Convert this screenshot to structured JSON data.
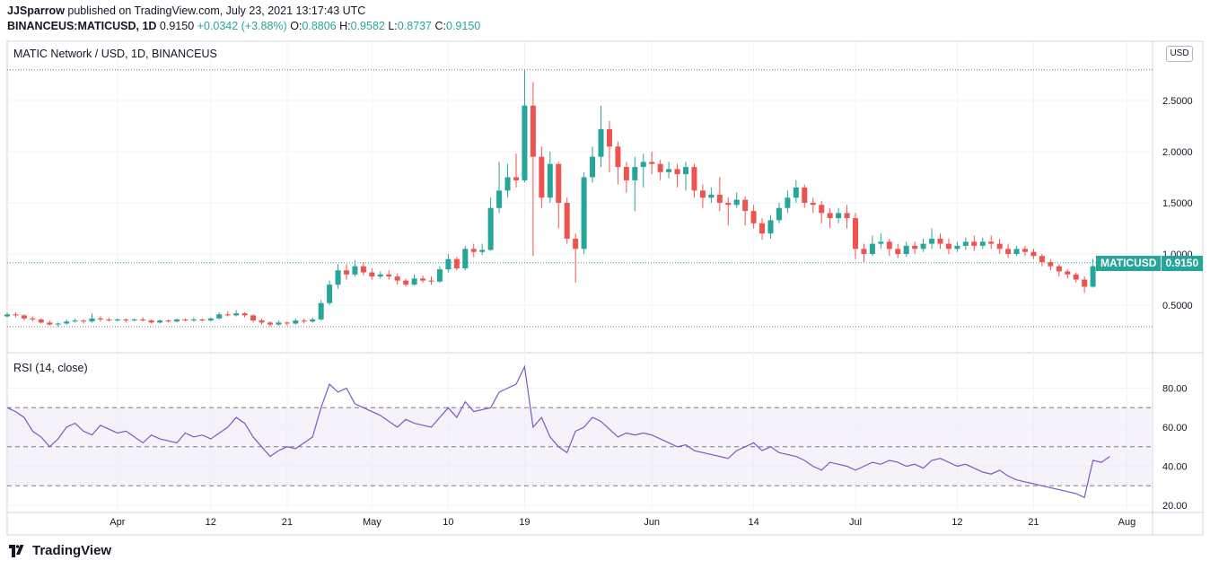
{
  "header": {
    "publisher": "JJSparrow",
    "published_text": "published on TradingView.com, July 23, 2021 13:17:43 UTC",
    "symbol_line": "BINANCEUS:MATICUSD, 1D",
    "last": "0.9150",
    "change": "+0.0342 (+3.88%)",
    "o_label": "O:",
    "o": "0.8806",
    "h_label": "H:",
    "h": "0.9582",
    "l_label": "L:",
    "l": "0.8737",
    "c_label": "C:",
    "c": "0.9150"
  },
  "main_pane": {
    "legend": "MATIC Network / USD, 1D, BINANCEUS",
    "currency_button": "USD",
    "price_tag_symbol": "MATICUSD",
    "price_tag_value": "0.9150"
  },
  "rsi_pane": {
    "legend": "RSI (14, close)"
  },
  "footer": {
    "brand": "TradingView"
  },
  "colors": {
    "up": "#26a69a",
    "down": "#ef5350",
    "rsi_line": "#7e57c2",
    "rsi_band": "#ede7f6"
  },
  "chart_data": [
    {
      "type": "candlestick",
      "title": "MATIC Network / USD, 1D, BINANCEUS",
      "ylim": [
        0.2,
        2.9
      ],
      "yticks": [
        "0.5000",
        "1.0000",
        "1.5000",
        "2.0000",
        "2.5000"
      ],
      "yticks_values": [
        0.5,
        1.0,
        1.5,
        2.0,
        2.5
      ],
      "xticks": [
        "Apr",
        "12",
        "21",
        "May",
        "10",
        "19",
        "Jun",
        "14",
        "Jul",
        "12",
        "21",
        "Aug"
      ],
      "xticks_day": [
        13,
        24,
        33,
        43,
        52,
        61,
        76,
        88,
        100,
        112,
        121,
        132
      ],
      "last_price": 0.915,
      "candles": [
        [
          0,
          0.39,
          0.41,
          0.43,
          0.38
        ],
        [
          1,
          0.41,
          0.4,
          0.43,
          0.38
        ],
        [
          2,
          0.4,
          0.37,
          0.41,
          0.35
        ],
        [
          3,
          0.37,
          0.36,
          0.39,
          0.34
        ],
        [
          4,
          0.36,
          0.33,
          0.37,
          0.32
        ],
        [
          5,
          0.33,
          0.31,
          0.35,
          0.3
        ],
        [
          6,
          0.31,
          0.32,
          0.33,
          0.29
        ],
        [
          7,
          0.32,
          0.34,
          0.36,
          0.31
        ],
        [
          8,
          0.34,
          0.35,
          0.37,
          0.33
        ],
        [
          9,
          0.35,
          0.34,
          0.36,
          0.32
        ],
        [
          10,
          0.34,
          0.37,
          0.42,
          0.33
        ],
        [
          11,
          0.37,
          0.36,
          0.39,
          0.34
        ],
        [
          12,
          0.36,
          0.35,
          0.38,
          0.34
        ],
        [
          13,
          0.35,
          0.36,
          0.37,
          0.34
        ],
        [
          14,
          0.36,
          0.35,
          0.37,
          0.33
        ],
        [
          15,
          0.35,
          0.36,
          0.37,
          0.34
        ],
        [
          16,
          0.36,
          0.35,
          0.38,
          0.34
        ],
        [
          17,
          0.35,
          0.33,
          0.36,
          0.32
        ],
        [
          18,
          0.33,
          0.35,
          0.36,
          0.32
        ],
        [
          19,
          0.35,
          0.34,
          0.36,
          0.33
        ],
        [
          20,
          0.34,
          0.36,
          0.37,
          0.33
        ],
        [
          21,
          0.36,
          0.35,
          0.37,
          0.34
        ],
        [
          22,
          0.35,
          0.36,
          0.38,
          0.34
        ],
        [
          23,
          0.36,
          0.35,
          0.37,
          0.34
        ],
        [
          24,
          0.35,
          0.37,
          0.38,
          0.34
        ],
        [
          25,
          0.37,
          0.41,
          0.43,
          0.36
        ],
        [
          26,
          0.41,
          0.4,
          0.44,
          0.39
        ],
        [
          27,
          0.4,
          0.42,
          0.45,
          0.39
        ],
        [
          28,
          0.42,
          0.4,
          0.43,
          0.38
        ],
        [
          29,
          0.4,
          0.35,
          0.41,
          0.33
        ],
        [
          30,
          0.35,
          0.33,
          0.37,
          0.31
        ],
        [
          31,
          0.33,
          0.31,
          0.34,
          0.29
        ],
        [
          32,
          0.31,
          0.33,
          0.35,
          0.3
        ],
        [
          33,
          0.33,
          0.32,
          0.34,
          0.3
        ],
        [
          34,
          0.32,
          0.35,
          0.37,
          0.31
        ],
        [
          35,
          0.35,
          0.34,
          0.37,
          0.32
        ],
        [
          36,
          0.34,
          0.36,
          0.38,
          0.33
        ],
        [
          37,
          0.36,
          0.52,
          0.55,
          0.35
        ],
        [
          38,
          0.52,
          0.7,
          0.74,
          0.5
        ],
        [
          39,
          0.7,
          0.84,
          0.9,
          0.66
        ],
        [
          40,
          0.84,
          0.8,
          0.9,
          0.75
        ],
        [
          41,
          0.8,
          0.88,
          0.94,
          0.78
        ],
        [
          42,
          0.88,
          0.82,
          0.92,
          0.79
        ],
        [
          43,
          0.82,
          0.78,
          0.86,
          0.75
        ],
        [
          44,
          0.78,
          0.8,
          0.83,
          0.76
        ],
        [
          45,
          0.8,
          0.78,
          0.84,
          0.75
        ],
        [
          46,
          0.78,
          0.74,
          0.81,
          0.7
        ],
        [
          47,
          0.74,
          0.7,
          0.76,
          0.68
        ],
        [
          48,
          0.7,
          0.76,
          0.8,
          0.69
        ],
        [
          49,
          0.76,
          0.74,
          0.79,
          0.72
        ],
        [
          50,
          0.74,
          0.73,
          0.78,
          0.7
        ],
        [
          51,
          0.73,
          0.85,
          0.88,
          0.72
        ],
        [
          52,
          0.85,
          0.95,
          1.0,
          0.82
        ],
        [
          53,
          0.95,
          0.86,
          0.97,
          0.84
        ],
        [
          54,
          0.86,
          1.05,
          1.08,
          0.84
        ],
        [
          55,
          1.05,
          1.02,
          1.1,
          0.97
        ],
        [
          56,
          1.02,
          1.04,
          1.1,
          0.99
        ],
        [
          57,
          1.04,
          1.45,
          1.55,
          1.03
        ],
        [
          58,
          1.45,
          1.62,
          1.9,
          1.4
        ],
        [
          59,
          1.62,
          1.75,
          1.88,
          1.55
        ],
        [
          60,
          1.75,
          1.72,
          1.98,
          1.65
        ],
        [
          61,
          1.72,
          2.45,
          2.8,
          1.7
        ],
        [
          62,
          2.45,
          1.95,
          2.68,
          0.98
        ],
        [
          63,
          1.95,
          1.55,
          2.05,
          1.45
        ],
        [
          64,
          1.55,
          1.88,
          2.0,
          1.5
        ],
        [
          65,
          1.88,
          1.5,
          1.9,
          1.25
        ],
        [
          66,
          1.5,
          1.15,
          1.55,
          1.1
        ],
        [
          67,
          1.15,
          1.05,
          1.2,
          0.72
        ],
        [
          68,
          1.05,
          1.75,
          1.8,
          1.0
        ],
        [
          69,
          1.75,
          1.95,
          2.05,
          1.7
        ],
        [
          70,
          1.95,
          2.22,
          2.45,
          1.85
        ],
        [
          71,
          2.22,
          2.05,
          2.3,
          1.8
        ],
        [
          72,
          2.05,
          1.85,
          2.1,
          1.68
        ],
        [
          73,
          1.85,
          1.72,
          1.9,
          1.6
        ],
        [
          74,
          1.72,
          1.85,
          1.95,
          1.42
        ],
        [
          75,
          1.85,
          1.9,
          1.98,
          1.65
        ],
        [
          76,
          1.9,
          1.88,
          2.0,
          1.78
        ],
        [
          77,
          1.88,
          1.8,
          1.92,
          1.72
        ],
        [
          78,
          1.8,
          1.83,
          1.9,
          1.74
        ],
        [
          79,
          1.83,
          1.78,
          1.88,
          1.65
        ],
        [
          80,
          1.78,
          1.85,
          1.9,
          1.62
        ],
        [
          81,
          1.85,
          1.62,
          1.88,
          1.55
        ],
        [
          82,
          1.62,
          1.55,
          1.68,
          1.45
        ],
        [
          83,
          1.55,
          1.58,
          1.65,
          1.5
        ],
        [
          84,
          1.58,
          1.5,
          1.75,
          1.42
        ],
        [
          85,
          1.5,
          1.48,
          1.55,
          1.28
        ],
        [
          86,
          1.48,
          1.53,
          1.6,
          1.45
        ],
        [
          87,
          1.53,
          1.42,
          1.56,
          1.28
        ],
        [
          88,
          1.42,
          1.3,
          1.48,
          1.25
        ],
        [
          89,
          1.3,
          1.2,
          1.35,
          1.14
        ],
        [
          90,
          1.2,
          1.33,
          1.38,
          1.15
        ],
        [
          91,
          1.33,
          1.45,
          1.5,
          1.3
        ],
        [
          92,
          1.45,
          1.55,
          1.62,
          1.4
        ],
        [
          93,
          1.55,
          1.65,
          1.72,
          1.5
        ],
        [
          94,
          1.65,
          1.5,
          1.68,
          1.45
        ],
        [
          95,
          1.5,
          1.48,
          1.55,
          1.4
        ],
        [
          96,
          1.48,
          1.4,
          1.52,
          1.3
        ],
        [
          97,
          1.4,
          1.35,
          1.45,
          1.25
        ],
        [
          98,
          1.35,
          1.4,
          1.45,
          1.3
        ],
        [
          99,
          1.4,
          1.35,
          1.48,
          1.25
        ],
        [
          100,
          1.35,
          1.05,
          1.4,
          0.95
        ],
        [
          101,
          1.05,
          1.0,
          1.1,
          0.92
        ],
        [
          102,
          1.0,
          1.1,
          1.18,
          0.98
        ],
        [
          103,
          1.1,
          1.12,
          1.2,
          1.05
        ],
        [
          104,
          1.12,
          1.05,
          1.15,
          0.98
        ],
        [
          105,
          1.05,
          1.0,
          1.1,
          0.96
        ],
        [
          106,
          1.0,
          1.08,
          1.12,
          0.97
        ],
        [
          107,
          1.08,
          1.05,
          1.12,
          1.0
        ],
        [
          108,
          1.05,
          1.1,
          1.15,
          1.02
        ],
        [
          109,
          1.1,
          1.15,
          1.25,
          1.05
        ],
        [
          110,
          1.15,
          1.1,
          1.2,
          1.05
        ],
        [
          111,
          1.1,
          1.05,
          1.15,
          1.0
        ],
        [
          112,
          1.05,
          1.08,
          1.12,
          1.02
        ],
        [
          113,
          1.08,
          1.12,
          1.16,
          1.04
        ],
        [
          114,
          1.12,
          1.08,
          1.18,
          1.03
        ],
        [
          115,
          1.08,
          1.12,
          1.16,
          1.05
        ],
        [
          116,
          1.12,
          1.1,
          1.18,
          1.05
        ],
        [
          117,
          1.1,
          1.05,
          1.15,
          1.0
        ],
        [
          118,
          1.05,
          1.0,
          1.1,
          0.96
        ],
        [
          119,
          1.0,
          1.05,
          1.08,
          0.98
        ],
        [
          120,
          1.05,
          1.02,
          1.08,
          0.98
        ],
        [
          121,
          1.02,
          0.98,
          1.05,
          0.95
        ],
        [
          122,
          0.98,
          0.92,
          1.0,
          0.88
        ],
        [
          123,
          0.92,
          0.88,
          0.95,
          0.84
        ],
        [
          124,
          0.88,
          0.83,
          0.9,
          0.78
        ],
        [
          125,
          0.83,
          0.8,
          0.85,
          0.76
        ],
        [
          126,
          0.8,
          0.75,
          0.82,
          0.72
        ],
        [
          127,
          0.75,
          0.68,
          0.78,
          0.62
        ],
        [
          128,
          0.68,
          0.88,
          0.95,
          0.67
        ],
        [
          129,
          0.88,
          0.88,
          0.93,
          0.85
        ],
        [
          130,
          0.88,
          0.915,
          0.958,
          0.874
        ]
      ]
    },
    {
      "type": "line",
      "title": "RSI (14, close)",
      "ylim": [
        15,
        95
      ],
      "yticks": [
        "20.00",
        "40.00",
        "60.00",
        "80.00"
      ],
      "yticks_values": [
        20,
        40,
        60,
        80
      ],
      "bands": [
        30,
        50,
        70
      ],
      "series": [
        {
          "values": [
            70,
            68,
            65,
            58,
            55,
            50,
            54,
            60,
            62,
            58,
            56,
            61,
            59,
            57,
            58,
            55,
            52,
            56,
            54,
            53,
            52,
            57,
            55,
            56,
            54,
            57,
            60,
            65,
            62,
            55,
            50,
            45,
            48,
            50,
            49,
            52,
            55,
            70,
            82,
            78,
            80,
            72,
            70,
            68,
            66,
            63,
            60,
            64,
            62,
            61,
            60,
            65,
            70,
            65,
            73,
            68,
            69,
            70,
            78,
            80,
            82,
            91,
            60,
            65,
            55,
            50,
            47,
            58,
            60,
            65,
            63,
            59,
            55,
            57,
            56,
            57,
            56,
            54,
            52,
            50,
            51,
            48,
            47,
            46,
            45,
            44,
            48,
            50,
            52,
            48,
            50,
            47,
            46,
            45,
            43,
            40,
            38,
            42,
            41,
            40,
            38,
            40,
            42,
            41,
            43,
            42,
            40,
            41,
            39,
            43,
            44,
            42,
            40,
            41,
            39,
            37,
            36,
            38,
            35,
            33,
            32,
            31,
            30,
            29,
            28,
            27,
            26,
            24,
            43,
            42,
            45
          ]
        }
      ]
    }
  ]
}
